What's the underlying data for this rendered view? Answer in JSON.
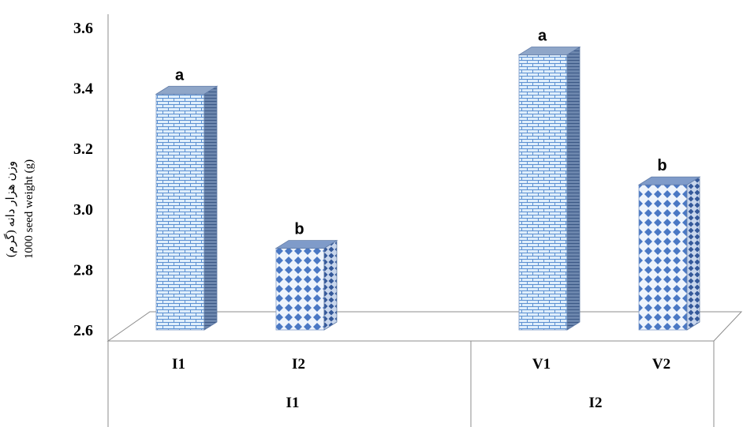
{
  "chart_data": {
    "type": "bar",
    "ylabel_fa": "وزن هزار دانه (گرم)",
    "ylabel": "1000 seed weight (g)",
    "ylim": [
      2.6,
      3.6
    ],
    "yticks": [
      "2.6",
      "2.8",
      "3.0",
      "3.2",
      "3.4",
      "3.6"
    ],
    "grid": false,
    "groups": [
      "I1",
      "I2"
    ],
    "categories": [
      "I1",
      "I2",
      "V1",
      "V2"
    ],
    "group_of_category": [
      "I1",
      "I1",
      "I2",
      "I2"
    ],
    "values": [
      3.38,
      2.87,
      3.51,
      3.08
    ],
    "letters": [
      "a",
      "b",
      "a",
      "b"
    ],
    "patterns": [
      "brick",
      "diamond",
      "brick",
      "diamond"
    ]
  }
}
